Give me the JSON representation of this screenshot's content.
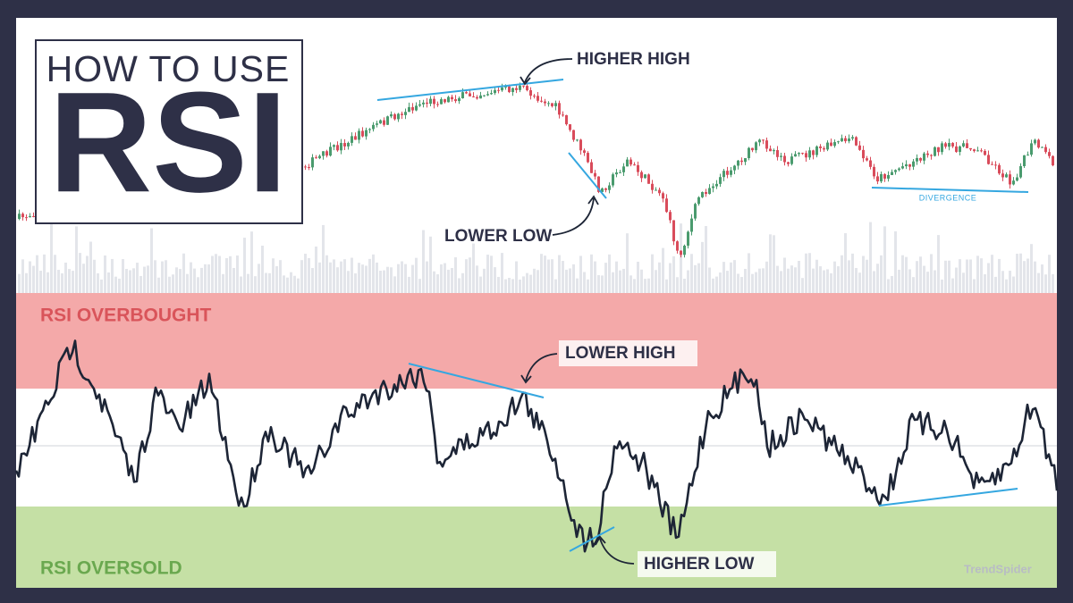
{
  "title": {
    "line1": "HOW TO USE",
    "line2": "RSI"
  },
  "price_panel": {
    "annotations": [
      "HIGHER HIGH",
      "LOWER LOW",
      "DIVERGENCE"
    ]
  },
  "rsi_panel": {
    "overbought_label": "RSI OVERBOUGHT",
    "oversold_label": "RSI OVERSOLD",
    "annotations": [
      "LOWER HIGH",
      "HIGHER LOW"
    ]
  },
  "watermark": "TrendSpider"
}
